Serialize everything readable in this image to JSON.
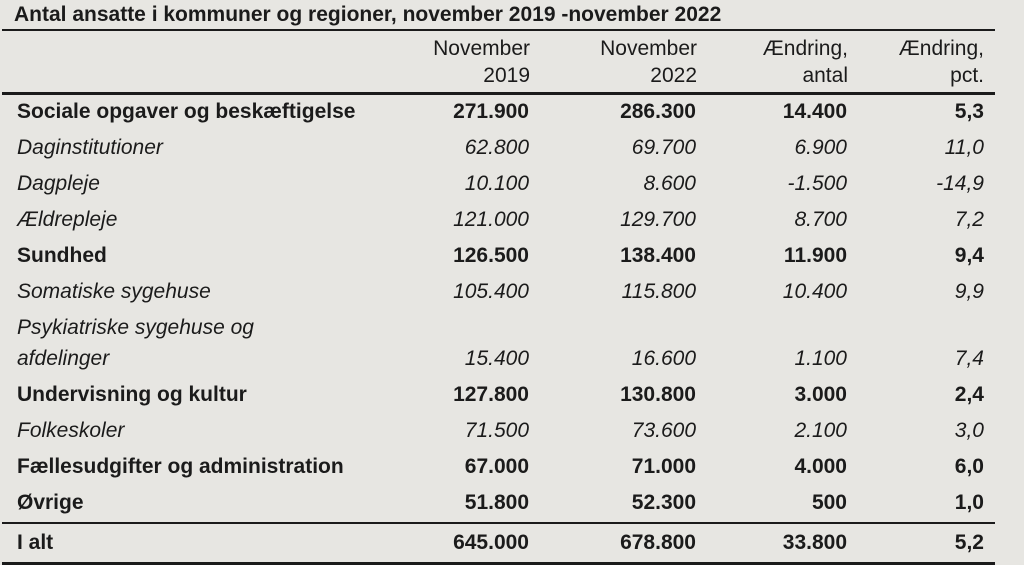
{
  "colors": {
    "background": "#e7e6e2",
    "text": "#1b1b1b",
    "rule": "#1b1b1b"
  },
  "chart_data": {
    "type": "table",
    "title": "Antal ansatte i kommuner og regioner, november 2019 -november 2022",
    "columns": [
      "November\n2019",
      "November\n2022",
      "Ændring,\nantal",
      "Ændring,\npct."
    ],
    "rows": [
      {
        "label": "Sociale opgaver og beskæftigelse",
        "emphasis": "bold",
        "values": [
          "271.900",
          "286.300",
          "14.400",
          "5,3"
        ]
      },
      {
        "label": "Daginstitutioner",
        "emphasis": "italic",
        "values": [
          "62.800",
          "69.700",
          "6.900",
          "11,0"
        ]
      },
      {
        "label": "Dagpleje",
        "emphasis": "italic",
        "values": [
          "10.100",
          "8.600",
          "-1.500",
          "-14,9"
        ]
      },
      {
        "label": "Ældrepleje",
        "emphasis": "italic",
        "values": [
          "121.000",
          "129.700",
          "8.700",
          "7,2"
        ]
      },
      {
        "label": "Sundhed",
        "emphasis": "bold",
        "values": [
          "126.500",
          "138.400",
          "11.900",
          "9,4"
        ]
      },
      {
        "label": "Somatiske sygehuse",
        "emphasis": "italic",
        "values": [
          "105.400",
          "115.800",
          "10.400",
          "9,9"
        ]
      },
      {
        "label": "Psykiatriske sygehuse og\nafdelinger",
        "emphasis": "italic",
        "values": [
          "15.400",
          "16.600",
          "1.100",
          "7,4"
        ]
      },
      {
        "label": "Undervisning og kultur",
        "emphasis": "bold",
        "values": [
          "127.800",
          "130.800",
          "3.000",
          "2,4"
        ]
      },
      {
        "label": "Folkeskoler",
        "emphasis": "italic",
        "values": [
          "71.500",
          "73.600",
          "2.100",
          "3,0"
        ]
      },
      {
        "label": "Fællesudgifter og administration",
        "emphasis": "bold",
        "values": [
          "67.000",
          "71.000",
          "4.000",
          "6,0"
        ]
      },
      {
        "label": "Øvrige",
        "emphasis": "bold",
        "values": [
          "51.800",
          "52.300",
          "500",
          "1,0"
        ]
      }
    ],
    "total": {
      "label": "I alt",
      "values": [
        "645.000",
        "678.800",
        "33.800",
        "5,2"
      ]
    }
  }
}
